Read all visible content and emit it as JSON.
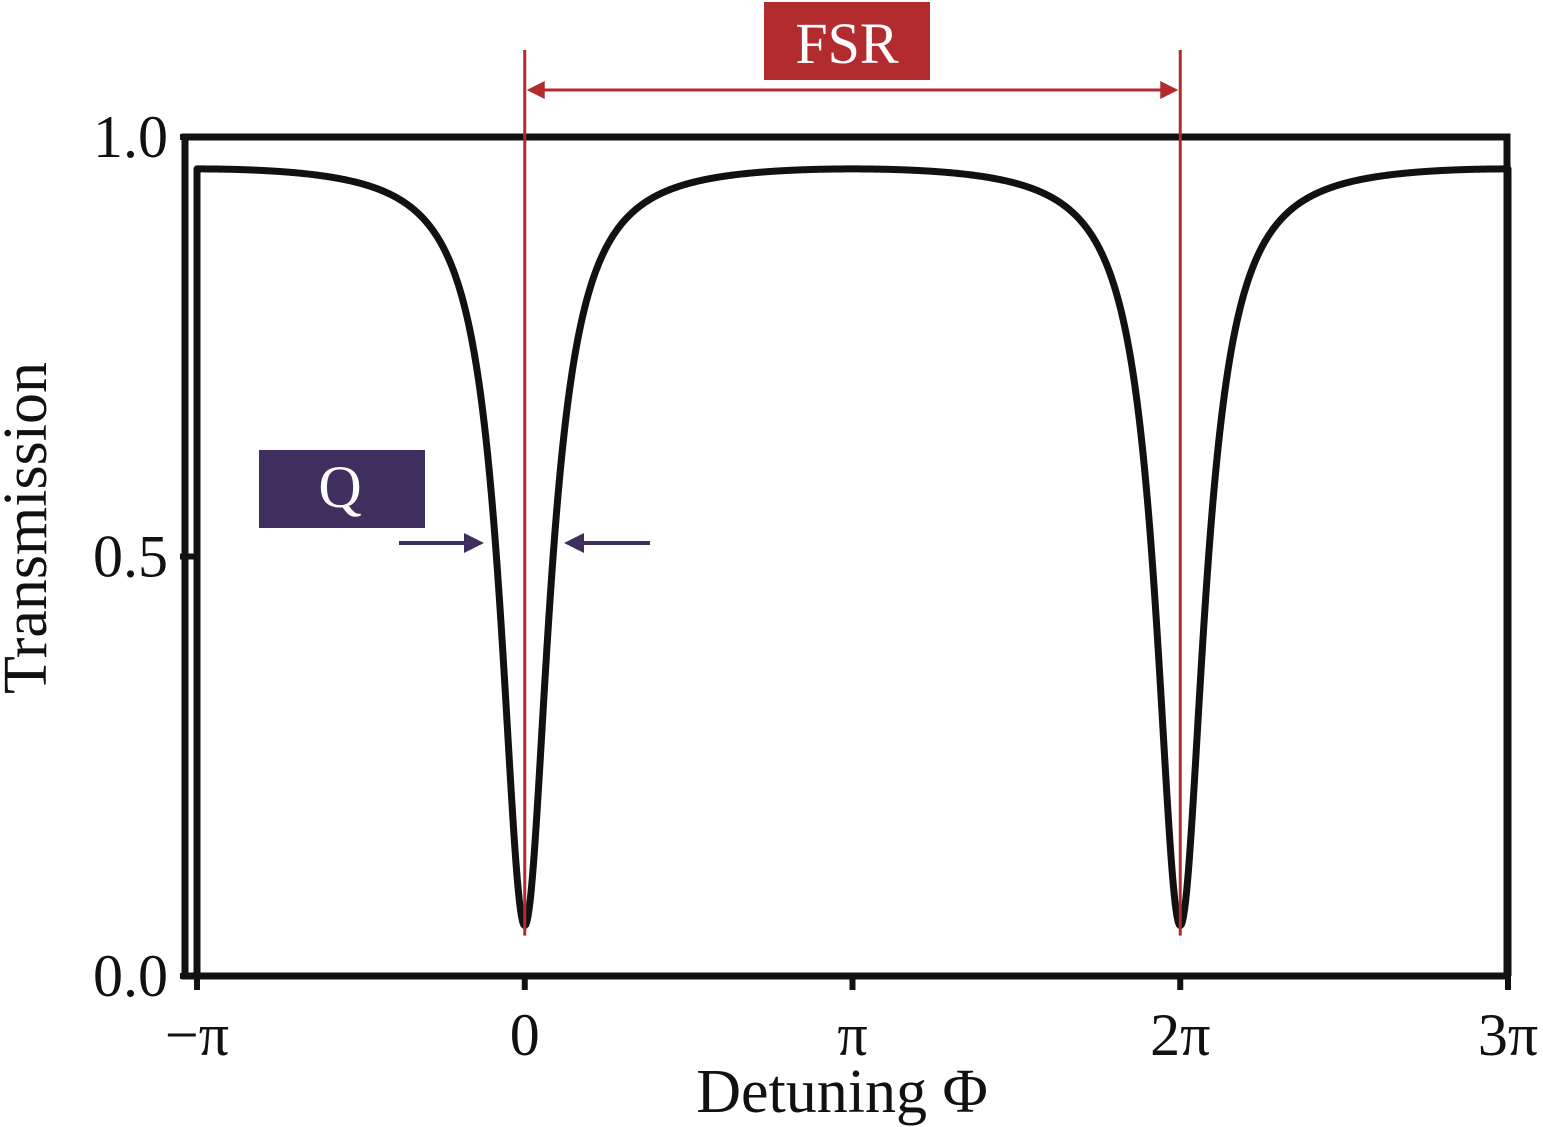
{
  "chart_data": {
    "type": "line",
    "xlabel": "Detuning Φ",
    "ylabel": "Transmission",
    "x_ticks": [
      {
        "value": -3.14159,
        "label": "−π"
      },
      {
        "value": 0,
        "label": "0"
      },
      {
        "value": 3.14159,
        "label": "π"
      },
      {
        "value": 6.28319,
        "label": "2π"
      },
      {
        "value": 9.42478,
        "label": "3π"
      }
    ],
    "y_ticks": [
      {
        "value": 0.0,
        "label": "0.0"
      },
      {
        "value": 0.5,
        "label": "0.5"
      },
      {
        "value": 1.0,
        "label": "1.0"
      }
    ],
    "xlim": [
      -3.14159,
      9.42478
    ],
    "ylim": [
      0,
      1.0
    ],
    "grid": false,
    "series": [
      {
        "resonances_at": [
          0,
          6.28319
        ],
        "min_transmission": 0.06,
        "max_transmission": 0.98
      }
    ],
    "annotations": [
      {
        "label": "FSR",
        "x_start": 0,
        "x_end": 6.28319,
        "color": "#b22b2f"
      },
      {
        "label": "Q",
        "y": 0.52,
        "color": "#3f2f5f"
      }
    ]
  },
  "colors": {
    "curve": "#111111",
    "fsr": "#b22b2f",
    "q": "#3f2f5f",
    "axes": "#111111"
  }
}
